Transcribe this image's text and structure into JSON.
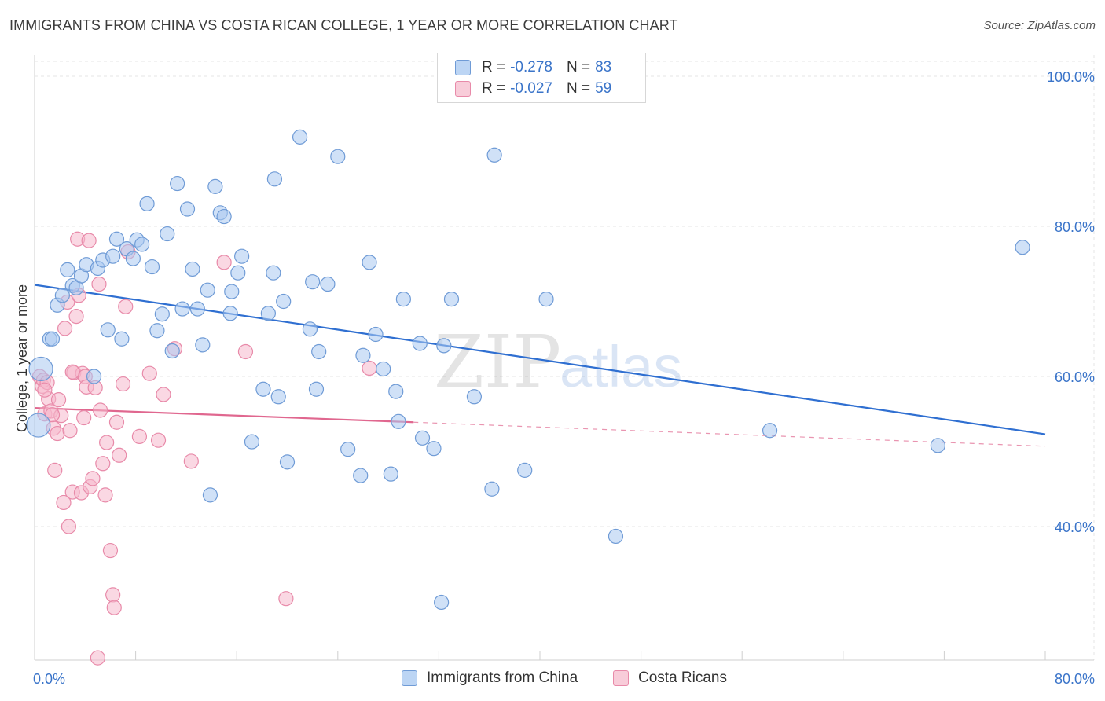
{
  "title": "IMMIGRANTS FROM CHINA VS COSTA RICAN COLLEGE, 1 YEAR OR MORE CORRELATION CHART",
  "source": "Source: ZipAtlas.com",
  "watermark": {
    "zip": "ZIP",
    "atlas": "atlas"
  },
  "legend": {
    "rows": [
      {
        "r_label": "R =",
        "r_value": "-0.278",
        "n_label": "N =",
        "n_value": "83"
      },
      {
        "r_label": "R =",
        "r_value": "-0.027",
        "n_label": "N =",
        "n_value": "59"
      }
    ]
  },
  "bottom_legend": [
    "Immigrants from China",
    "Costa Ricans"
  ],
  "colors": {
    "blue_fill": "#a9c8f0",
    "blue_stroke": "#6f9bd6",
    "blue_line": "#2f6fd1",
    "pink_fill": "#f5b8cc",
    "pink_stroke": "#e88aa9",
    "pink_line": "#e0678f",
    "tick_text": "#3a74c9",
    "grid": "#e4e4e4"
  },
  "chart_data": {
    "type": "scatter",
    "title": "IMMIGRANTS FROM CHINA VS COSTA RICAN COLLEGE, 1 YEAR OR MORE CORRELATION CHART",
    "xlabel": "",
    "ylabel": "College, 1 year or more",
    "xlim": [
      0,
      80
    ],
    "ylim": [
      20,
      102
    ],
    "x_tick_labels": [
      "0.0%",
      "80.0%"
    ],
    "y_ticks": [
      40,
      60,
      80,
      100
    ],
    "y_tick_labels": [
      "40.0%",
      "60.0%",
      "80.0%",
      "100.0%"
    ],
    "grid": true,
    "legend_position": "top-center",
    "series": [
      {
        "name": "Immigrants from China",
        "color": "#a9c8f0",
        "trend": {
          "x": [
            0,
            80
          ],
          "y": [
            72.2,
            52.3
          ],
          "style": "solid"
        },
        "points": [
          [
            0.5,
            61.0
          ],
          [
            1.2,
            65.0
          ],
          [
            1.4,
            65.0
          ],
          [
            1.8,
            69.5
          ],
          [
            2.2,
            70.8
          ],
          [
            2.6,
            74.2
          ],
          [
            3.0,
            72.1
          ],
          [
            3.3,
            71.8
          ],
          [
            3.7,
            73.4
          ],
          [
            4.1,
            74.9
          ],
          [
            4.7,
            60.0
          ],
          [
            5.0,
            74.4
          ],
          [
            5.4,
            75.5
          ],
          [
            5.8,
            66.2
          ],
          [
            6.2,
            76.0
          ],
          [
            6.5,
            78.3
          ],
          [
            6.9,
            65.0
          ],
          [
            7.3,
            77.0
          ],
          [
            7.8,
            75.7
          ],
          [
            8.1,
            78.2
          ],
          [
            8.5,
            77.6
          ],
          [
            8.9,
            83.0
          ],
          [
            9.3,
            74.6
          ],
          [
            9.7,
            66.1
          ],
          [
            10.1,
            68.3
          ],
          [
            10.5,
            79.0
          ],
          [
            10.9,
            63.4
          ],
          [
            11.3,
            85.7
          ],
          [
            11.7,
            69.0
          ],
          [
            12.1,
            82.3
          ],
          [
            12.5,
            74.3
          ],
          [
            12.9,
            69.0
          ],
          [
            13.3,
            64.2
          ],
          [
            13.7,
            71.5
          ],
          [
            13.9,
            44.2
          ],
          [
            14.3,
            85.3
          ],
          [
            14.7,
            81.8
          ],
          [
            15.0,
            81.3
          ],
          [
            15.5,
            68.4
          ],
          [
            15.6,
            71.3
          ],
          [
            16.1,
            73.8
          ],
          [
            16.4,
            76.0
          ],
          [
            17.2,
            51.3
          ],
          [
            18.1,
            58.3
          ],
          [
            18.5,
            68.4
          ],
          [
            18.9,
            73.8
          ],
          [
            19.0,
            86.3
          ],
          [
            19.3,
            57.3
          ],
          [
            19.7,
            70.0
          ],
          [
            20.0,
            48.6
          ],
          [
            21.0,
            91.9
          ],
          [
            21.8,
            66.3
          ],
          [
            22.0,
            72.6
          ],
          [
            22.3,
            58.3
          ],
          [
            22.5,
            63.3
          ],
          [
            23.2,
            72.3
          ],
          [
            24.0,
            89.3
          ],
          [
            24.8,
            50.3
          ],
          [
            25.8,
            46.8
          ],
          [
            26.0,
            62.8
          ],
          [
            26.5,
            75.2
          ],
          [
            27.0,
            65.6
          ],
          [
            27.6,
            61.0
          ],
          [
            28.2,
            47.0
          ],
          [
            28.6,
            58.0
          ],
          [
            28.8,
            54.0
          ],
          [
            29.2,
            70.3
          ],
          [
            30.5,
            64.4
          ],
          [
            30.7,
            51.8
          ],
          [
            31.6,
            50.4
          ],
          [
            32.2,
            29.9
          ],
          [
            32.4,
            64.1
          ],
          [
            33.0,
            70.3
          ],
          [
            34.8,
            57.3
          ],
          [
            36.2,
            45.0
          ],
          [
            36.4,
            89.5
          ],
          [
            38.8,
            47.5
          ],
          [
            40.5,
            70.3
          ],
          [
            46.0,
            38.7
          ],
          [
            58.2,
            52.8
          ],
          [
            71.5,
            50.8
          ],
          [
            78.2,
            77.2
          ],
          [
            0.3,
            53.5
          ]
        ]
      },
      {
        "name": "Costa Ricans",
        "color": "#f5b8cc",
        "trend": {
          "x": [
            0,
            30
          ],
          "y": [
            55.8,
            53.9
          ],
          "style": "solid",
          "extended": {
            "x": [
              30,
              80
            ],
            "y": [
              53.9,
              50.7
            ],
            "style": "dashed"
          }
        },
        "points": [
          [
            0.4,
            60.0
          ],
          [
            0.6,
            58.7
          ],
          [
            0.7,
            59.5
          ],
          [
            0.8,
            55.0
          ],
          [
            1.0,
            59.2
          ],
          [
            1.1,
            57.0
          ],
          [
            1.3,
            55.4
          ],
          [
            1.5,
            53.1
          ],
          [
            1.6,
            47.5
          ],
          [
            1.8,
            52.4
          ],
          [
            1.9,
            56.9
          ],
          [
            2.1,
            54.8
          ],
          [
            2.3,
            43.2
          ],
          [
            2.4,
            66.4
          ],
          [
            2.6,
            69.9
          ],
          [
            2.7,
            40.0
          ],
          [
            2.8,
            52.8
          ],
          [
            3.0,
            44.6
          ],
          [
            3.1,
            60.5
          ],
          [
            3.3,
            68.0
          ],
          [
            3.4,
            78.3
          ],
          [
            3.5,
            70.8
          ],
          [
            3.7,
            44.5
          ],
          [
            3.8,
            60.4
          ],
          [
            3.9,
            54.5
          ],
          [
            4.0,
            60.0
          ],
          [
            4.1,
            58.6
          ],
          [
            4.3,
            78.1
          ],
          [
            4.4,
            45.3
          ],
          [
            4.6,
            46.4
          ],
          [
            4.8,
            58.5
          ],
          [
            5.0,
            22.5
          ],
          [
            5.1,
            72.3
          ],
          [
            5.2,
            55.5
          ],
          [
            5.4,
            48.4
          ],
          [
            5.6,
            44.2
          ],
          [
            5.7,
            51.2
          ],
          [
            6.0,
            36.8
          ],
          [
            6.2,
            30.9
          ],
          [
            6.3,
            29.2
          ],
          [
            6.5,
            53.9
          ],
          [
            6.7,
            49.5
          ],
          [
            7.0,
            59.0
          ],
          [
            7.2,
            69.3
          ],
          [
            7.4,
            76.6
          ],
          [
            8.3,
            52.0
          ],
          [
            9.1,
            60.4
          ],
          [
            9.8,
            51.5
          ],
          [
            10.2,
            57.6
          ],
          [
            11.1,
            63.7
          ],
          [
            12.4,
            48.7
          ],
          [
            15.0,
            75.2
          ],
          [
            16.7,
            63.3
          ],
          [
            19.9,
            30.4
          ],
          [
            26.5,
            61.1
          ],
          [
            34.4,
            97.6
          ],
          [
            3.0,
            60.6
          ],
          [
            1.4,
            54.9
          ],
          [
            0.8,
            58.2
          ]
        ]
      }
    ]
  }
}
